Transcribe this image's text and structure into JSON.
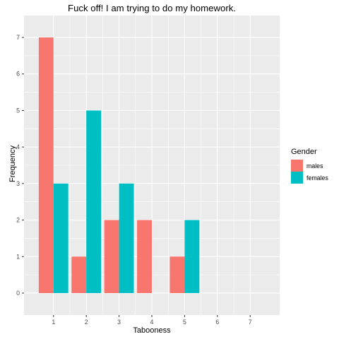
{
  "chart_data": {
    "type": "bar",
    "title": "Fuck off! I am trying to do my homework.",
    "xlabel": "Tabooness",
    "ylabel": "Frequency",
    "x_ticks": [
      "1",
      "2",
      "3",
      "4",
      "5",
      "6",
      "7"
    ],
    "y_ticks": [
      "0",
      "1",
      "2",
      "3",
      "4",
      "5",
      "6",
      "7"
    ],
    "xlim": [
      0.1,
      7.9
    ],
    "ylim": [
      -0.6,
      7.6
    ],
    "grid": true,
    "legend": {
      "title": "Gender",
      "position": "right"
    },
    "series": [
      {
        "name": "males",
        "color": "#F8766D",
        "points": [
          {
            "x": 1,
            "y": 7
          },
          {
            "x": 2,
            "y": 1
          },
          {
            "x": 3,
            "y": 2
          },
          {
            "x": 4,
            "y": 2
          },
          {
            "x": 5,
            "y": 1
          }
        ]
      },
      {
        "name": "females",
        "color": "#00BFC4",
        "points": [
          {
            "x": 1,
            "y": 3
          },
          {
            "x": 2,
            "y": 5
          },
          {
            "x": 3,
            "y": 3
          },
          {
            "x": 5,
            "y": 2
          }
        ]
      }
    ]
  },
  "colors": {
    "panel_background": "#EBEBEB",
    "gridline": "#FFFFFF"
  }
}
